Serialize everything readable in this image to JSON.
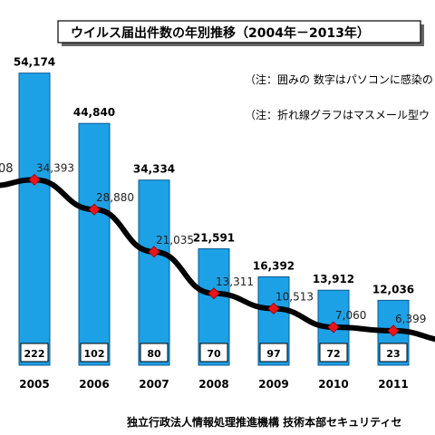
{
  "chart_data": {
    "type": "bar",
    "title": "ウイルス届出件数の年別推移（2004年－2013年）",
    "notes": [
      "（注：囲みの 数字はパソコンに感染の",
      "（注：折れ線グラフはマスメール型ウ"
    ],
    "credit": "独立行政法人情報処理推進機構 技術本部セキュリティセ",
    "categories": [
      "2005",
      "2006",
      "2007",
      "2008",
      "2009",
      "2010",
      "2011"
    ],
    "bar_labels": [
      "54,174",
      "44,840",
      "34,334",
      "21,591",
      "16,392",
      "13,912",
      "12,036"
    ],
    "boxed_labels": [
      "222",
      "102",
      "80",
      "70",
      "97",
      "72",
      "23"
    ],
    "line_labels": [
      "34,393",
      "28,880",
      "21,035",
      "13,311",
      "10,513",
      "7,060",
      "6,399"
    ],
    "left_partial_label": "08",
    "series": [
      {
        "type": "bar",
        "values": [
          54174,
          44840,
          34334,
          21591,
          16392,
          13912,
          12036
        ]
      },
      {
        "type": "line",
        "values": [
          34393,
          28880,
          21035,
          13311,
          10513,
          7060,
          6399
        ]
      }
    ],
    "ylim": [
      0,
      60000
    ],
    "grid": false,
    "colors": {
      "bar": "#1da1e6",
      "line": "#000000",
      "marker": "#e8161b"
    }
  }
}
